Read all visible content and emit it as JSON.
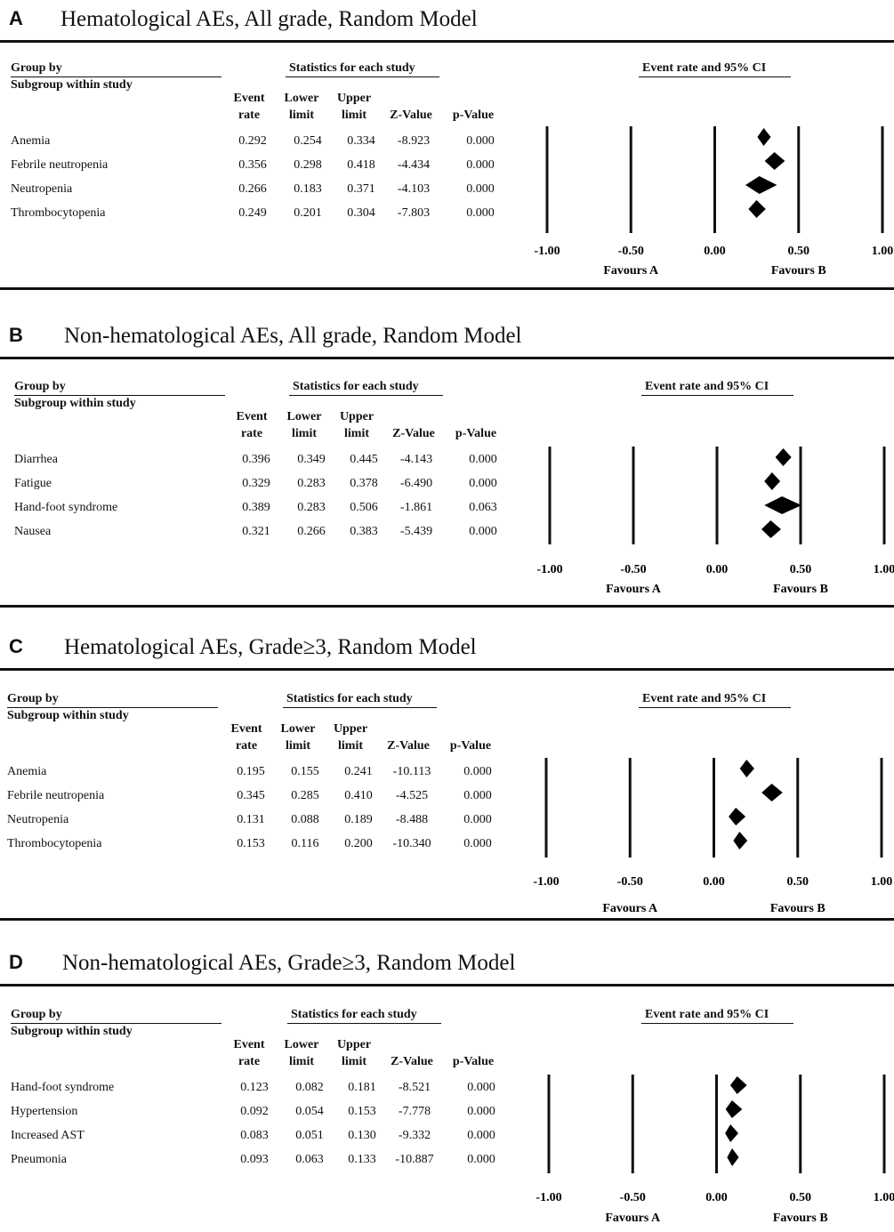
{
  "headers": {
    "group_by": "Group by",
    "subgroup": "Subgroup within study",
    "stats": "Statistics for each study",
    "ci": "Event rate and 95% CI"
  },
  "columns": [
    [
      "Event",
      "rate"
    ],
    [
      "Lower",
      "limit"
    ],
    [
      "Upper",
      "limit"
    ],
    [
      "",
      "Z-Value"
    ],
    [
      "",
      "p-Value"
    ]
  ],
  "axis": {
    "ticks": [
      "-1.00",
      "-0.50",
      "0.00",
      "0.50",
      "1.00"
    ],
    "favours_a": "Favours A",
    "favours_b": "Favours B",
    "xlim": [
      -1,
      1
    ]
  },
  "chart_data": [
    {
      "type": "forest",
      "letter": "A",
      "title": "Hematological AEs,  All grade,  Random Model",
      "rows": [
        {
          "name": "Anemia",
          "event_rate": "0.292",
          "lower": "0.254",
          "upper": "0.334",
          "z": "-8.923",
          "p": "0.000"
        },
        {
          "name": "Febrile neutropenia",
          "event_rate": "0.356",
          "lower": "0.298",
          "upper": "0.418",
          "z": "-4.434",
          "p": "0.000"
        },
        {
          "name": "Neutropenia",
          "event_rate": "0.266",
          "lower": "0.183",
          "upper": "0.371",
          "z": "-4.103",
          "p": "0.000"
        },
        {
          "name": "Thrombocytopenia",
          "event_rate": "0.249",
          "lower": "0.201",
          "upper": "0.304",
          "z": "-7.803",
          "p": "0.000"
        }
      ]
    },
    {
      "type": "forest",
      "letter": "B",
      "title": "Non-hematological AEs,  All grade,  Random Model",
      "rows": [
        {
          "name": "Diarrhea",
          "event_rate": "0.396",
          "lower": "0.349",
          "upper": "0.445",
          "z": "-4.143",
          "p": "0.000"
        },
        {
          "name": "Fatigue",
          "event_rate": "0.329",
          "lower": "0.283",
          "upper": "0.378",
          "z": "-6.490",
          "p": "0.000"
        },
        {
          "name": "Hand-foot syndrome",
          "event_rate": "0.389",
          "lower": "0.283",
          "upper": "0.506",
          "z": "-1.861",
          "p": "0.063"
        },
        {
          "name": "Nausea",
          "event_rate": "0.321",
          "lower": "0.266",
          "upper": "0.383",
          "z": "-5.439",
          "p": "0.000"
        }
      ]
    },
    {
      "type": "forest",
      "letter": "C",
      "title": "Hematological AEs,  Grade≥3, Random Model",
      "rows": [
        {
          "name": "Anemia",
          "event_rate": "0.195",
          "lower": "0.155",
          "upper": "0.241",
          "z": "-10.113",
          "p": "0.000"
        },
        {
          "name": "Febrile neutropenia",
          "event_rate": "0.345",
          "lower": "0.285",
          "upper": "0.410",
          "z": "-4.525",
          "p": "0.000"
        },
        {
          "name": "Neutropenia",
          "event_rate": "0.131",
          "lower": "0.088",
          "upper": "0.189",
          "z": "-8.488",
          "p": "0.000"
        },
        {
          "name": "Thrombocytopenia",
          "event_rate": "0.153",
          "lower": "0.116",
          "upper": "0.200",
          "z": "-10.340",
          "p": "0.000"
        }
      ]
    },
    {
      "type": "forest",
      "letter": "D",
      "title": "Non-hematological AEs,  Grade≥3, Random Model",
      "rows": [
        {
          "name": "Hand-foot syndrome",
          "event_rate": "0.123",
          "lower": "0.082",
          "upper": "0.181",
          "z": "-8.521",
          "p": "0.000"
        },
        {
          "name": "Hypertension",
          "event_rate": "0.092",
          "lower": "0.054",
          "upper": "0.153",
          "z": "-7.778",
          "p": "0.000"
        },
        {
          "name": "Increased AST",
          "event_rate": "0.083",
          "lower": "0.051",
          "upper": "0.130",
          "z": "-9.332",
          "p": "0.000"
        },
        {
          "name": "Pneumonia",
          "event_rate": "0.093",
          "lower": "0.063",
          "upper": "0.133",
          "z": "-10.887",
          "p": "0.000"
        }
      ]
    }
  ]
}
